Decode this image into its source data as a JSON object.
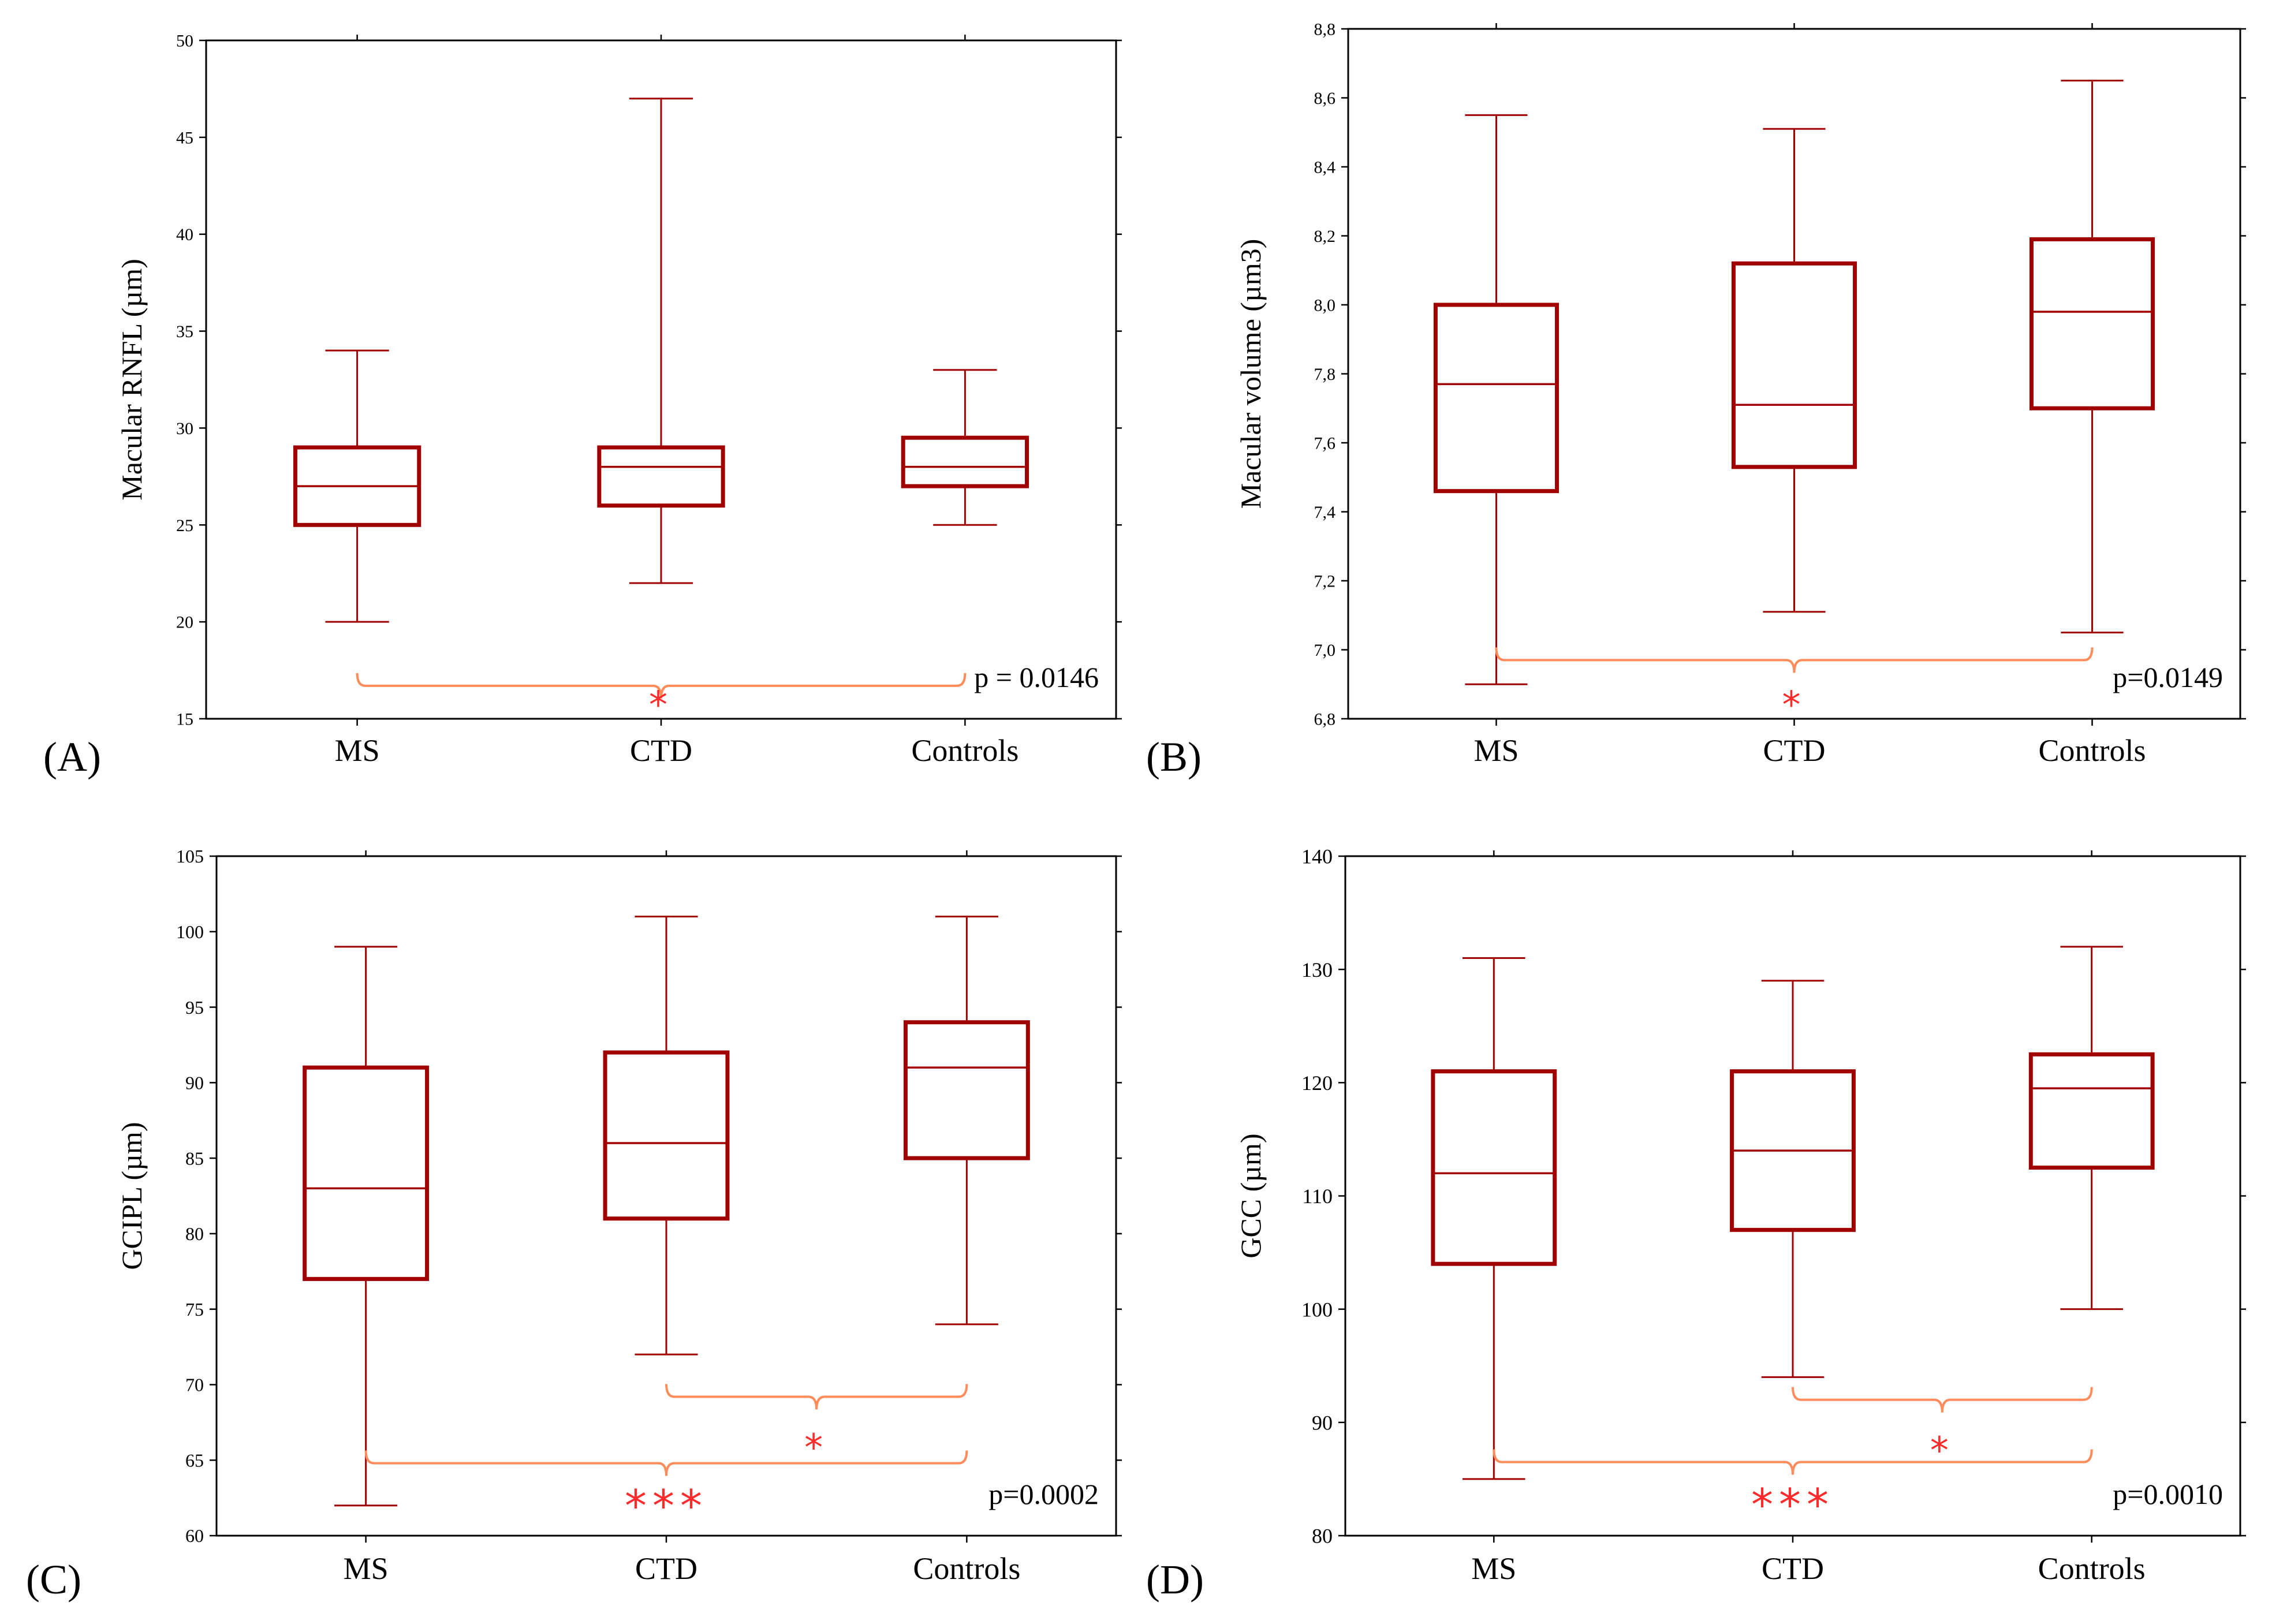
{
  "figure": {
    "panels": [
      {
        "id": "A",
        "label": "(A)"
      },
      {
        "id": "B",
        "label": "(B)"
      },
      {
        "id": "C",
        "label": "(C)"
      },
      {
        "id": "D",
        "label": "(D)"
      }
    ]
  },
  "colors": {
    "box": "#a00000",
    "bracket": "#ff8c5a",
    "star": "#ff2a2a",
    "frame": "#000000"
  },
  "chart_data": [
    {
      "panel": "(A)",
      "type": "box",
      "ylabel": "Macular RNFL (µm)",
      "ylim": [
        15,
        50
      ],
      "yticks": [
        "15",
        "20",
        "25",
        "30",
        "35",
        "40",
        "45",
        "50"
      ],
      "ytick_values": [
        15,
        20,
        25,
        30,
        35,
        40,
        45,
        50
      ],
      "categories": [
        "MS",
        "CTD",
        "Controls"
      ],
      "boxes": [
        {
          "category": "MS",
          "min": 20,
          "q1": 25,
          "median": 27,
          "q3": 29,
          "max": 34
        },
        {
          "category": "CTD",
          "min": 22,
          "q1": 26,
          "median": 28,
          "q3": 29,
          "max": 47
        },
        {
          "category": "Controls",
          "min": 25,
          "q1": 27,
          "median": 28,
          "q3": 29.5,
          "max": 33
        }
      ],
      "comparisons": [
        {
          "from": "MS",
          "to": "Controls",
          "level": 16.7,
          "stars": "*",
          "star_pos": "CTD"
        }
      ],
      "pvalue": "p = 0.0146"
    },
    {
      "panel": "(B)",
      "type": "box",
      "ylabel": "Macular volume (µm3)",
      "ylim": [
        6.8,
        8.8
      ],
      "yticks": [
        "6,8",
        "7,0",
        "7,2",
        "7,4",
        "7,6",
        "7,8",
        "8,0",
        "8,2",
        "8,4",
        "8,6",
        "8,8"
      ],
      "ytick_values": [
        6.8,
        7.0,
        7.2,
        7.4,
        7.6,
        7.8,
        8.0,
        8.2,
        8.4,
        8.6,
        8.8
      ],
      "categories": [
        "MS",
        "CTD",
        "Controls"
      ],
      "boxes": [
        {
          "category": "MS",
          "min": 6.9,
          "q1": 7.46,
          "median": 7.77,
          "q3": 8.0,
          "max": 8.55
        },
        {
          "category": "CTD",
          "min": 7.11,
          "q1": 7.53,
          "median": 7.71,
          "q3": 8.12,
          "max": 8.51
        },
        {
          "category": "Controls",
          "min": 7.05,
          "q1": 7.7,
          "median": 7.98,
          "q3": 8.19,
          "max": 8.65
        }
      ],
      "comparisons": [
        {
          "from": "MS",
          "to": "Controls",
          "level": 6.97,
          "stars": "*",
          "star_pos": "CTD"
        }
      ],
      "pvalue": "p=0.0149"
    },
    {
      "panel": "(C)",
      "type": "box",
      "ylabel": "GCIPL (µm)",
      "ylim": [
        60,
        105
      ],
      "yticks": [
        "60",
        "65",
        "70",
        "75",
        "80",
        "85",
        "90",
        "95",
        "100",
        "105"
      ],
      "ytick_values": [
        60,
        65,
        70,
        75,
        80,
        85,
        90,
        95,
        100,
        105
      ],
      "categories": [
        "MS",
        "CTD",
        "Controls"
      ],
      "boxes": [
        {
          "category": "MS",
          "min": 62,
          "q1": 77,
          "median": 83,
          "q3": 91,
          "max": 99
        },
        {
          "category": "CTD",
          "min": 72,
          "q1": 81,
          "median": 86,
          "q3": 92,
          "max": 101
        },
        {
          "category": "Controls",
          "min": 74,
          "q1": 85,
          "median": 91,
          "q3": 94,
          "max": 101
        }
      ],
      "comparisons": [
        {
          "from": "CTD",
          "to": "Controls",
          "level": 69.2,
          "stars": "*",
          "star_pos": "mid-high"
        },
        {
          "from": "MS",
          "to": "Controls",
          "level": 64.8,
          "stars": "***",
          "star_pos": "CTD"
        }
      ],
      "pvalue": "p=0.0002"
    },
    {
      "panel": "(D)",
      "type": "box",
      "ylabel": "GCC (µm)",
      "ylim": [
        80,
        140
      ],
      "yticks": [
        "80",
        "90",
        "100",
        "110",
        "120",
        "130",
        "140"
      ],
      "ytick_values": [
        80,
        90,
        100,
        110,
        120,
        130,
        140
      ],
      "categories": [
        "MS",
        "CTD",
        "Controls"
      ],
      "boxes": [
        {
          "category": "MS",
          "min": 85,
          "q1": 104,
          "median": 112,
          "q3": 121,
          "max": 131
        },
        {
          "category": "CTD",
          "min": 94,
          "q1": 107,
          "median": 114,
          "q3": 121,
          "max": 129
        },
        {
          "category": "Controls",
          "min": 100,
          "q1": 112.5,
          "median": 119.5,
          "q3": 122.5,
          "max": 132
        }
      ],
      "comparisons": [
        {
          "from": "CTD",
          "to": "Controls",
          "level": 92,
          "stars": "*",
          "star_pos": "mid-high"
        },
        {
          "from": "MS",
          "to": "Controls",
          "level": 86.5,
          "stars": "***",
          "star_pos": "CTD"
        }
      ],
      "pvalue": "p=0.0010"
    }
  ]
}
